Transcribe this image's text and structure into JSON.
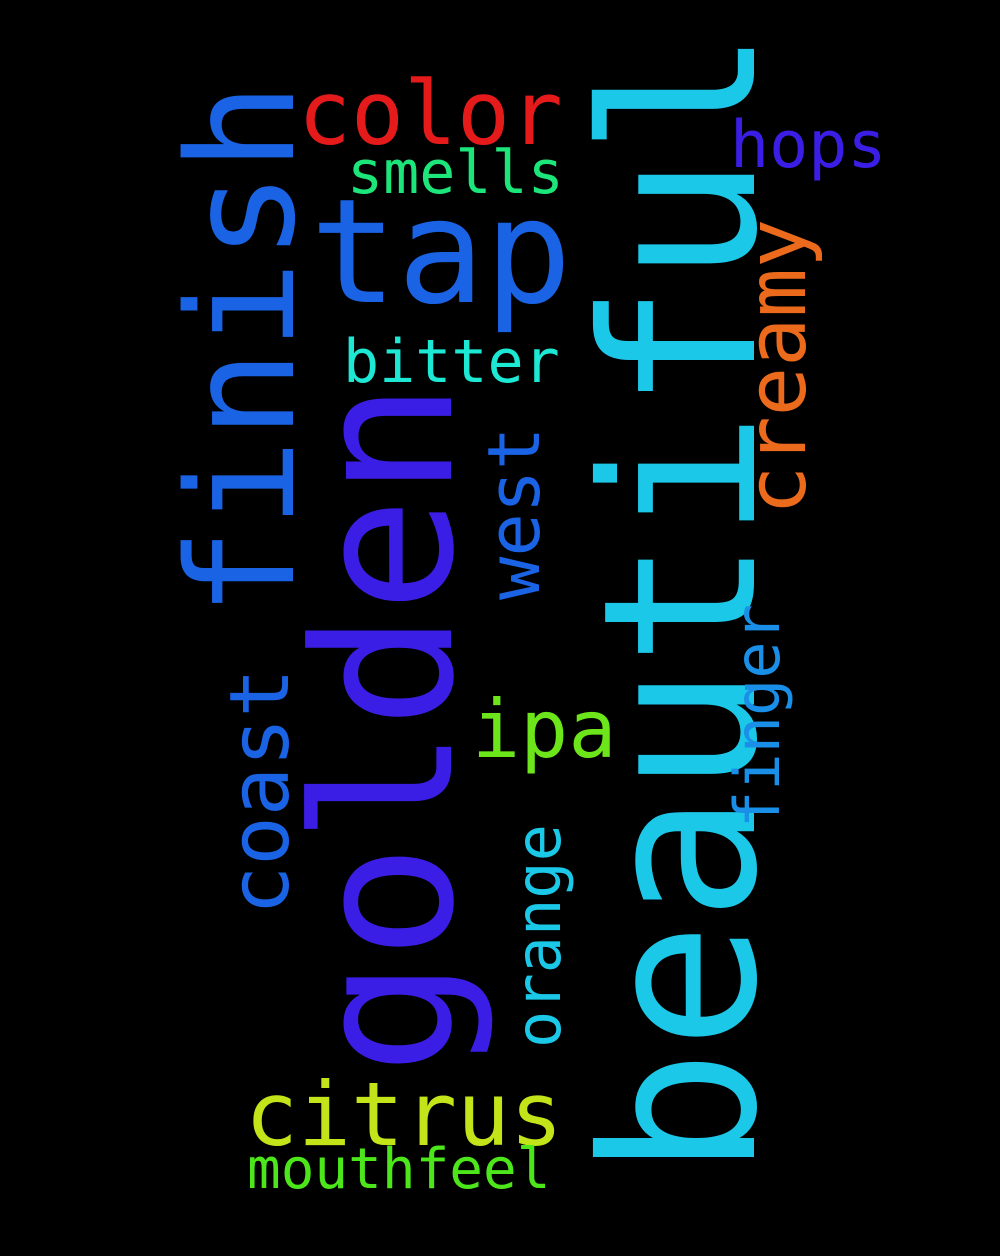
{
  "words": [
    {
      "text": "beautiful",
      "color": "#1CC8E8",
      "rotated": true
    },
    {
      "text": "golden",
      "color": "#3B1EE6",
      "rotated": true
    },
    {
      "text": "finish",
      "color": "#1A63E5",
      "rotated": true
    },
    {
      "text": "tap",
      "color": "#1A63E5",
      "rotated": false
    },
    {
      "text": "color",
      "color": "#E51B1B",
      "rotated": false
    },
    {
      "text": "citrus",
      "color": "#C4E41A",
      "rotated": false
    },
    {
      "text": "creamy",
      "color": "#EB6A1C",
      "rotated": true
    },
    {
      "text": "coast",
      "color": "#1A63E5",
      "rotated": true
    },
    {
      "text": "ipa",
      "color": "#6CE61A",
      "rotated": false
    },
    {
      "text": "hops",
      "color": "#3B1EE6",
      "rotated": false
    },
    {
      "text": "west",
      "color": "#1A63E5",
      "rotated": true
    },
    {
      "text": "orange",
      "color": "#1CC8E8",
      "rotated": true
    },
    {
      "text": "smells",
      "color": "#1CE67A",
      "rotated": false
    },
    {
      "text": "bitter",
      "color": "#1CE8D4",
      "rotated": false
    },
    {
      "text": "finger",
      "color": "#1A8FE8",
      "rotated": true
    },
    {
      "text": "mouthfeel",
      "color": "#4CE61A",
      "rotated": false
    }
  ]
}
